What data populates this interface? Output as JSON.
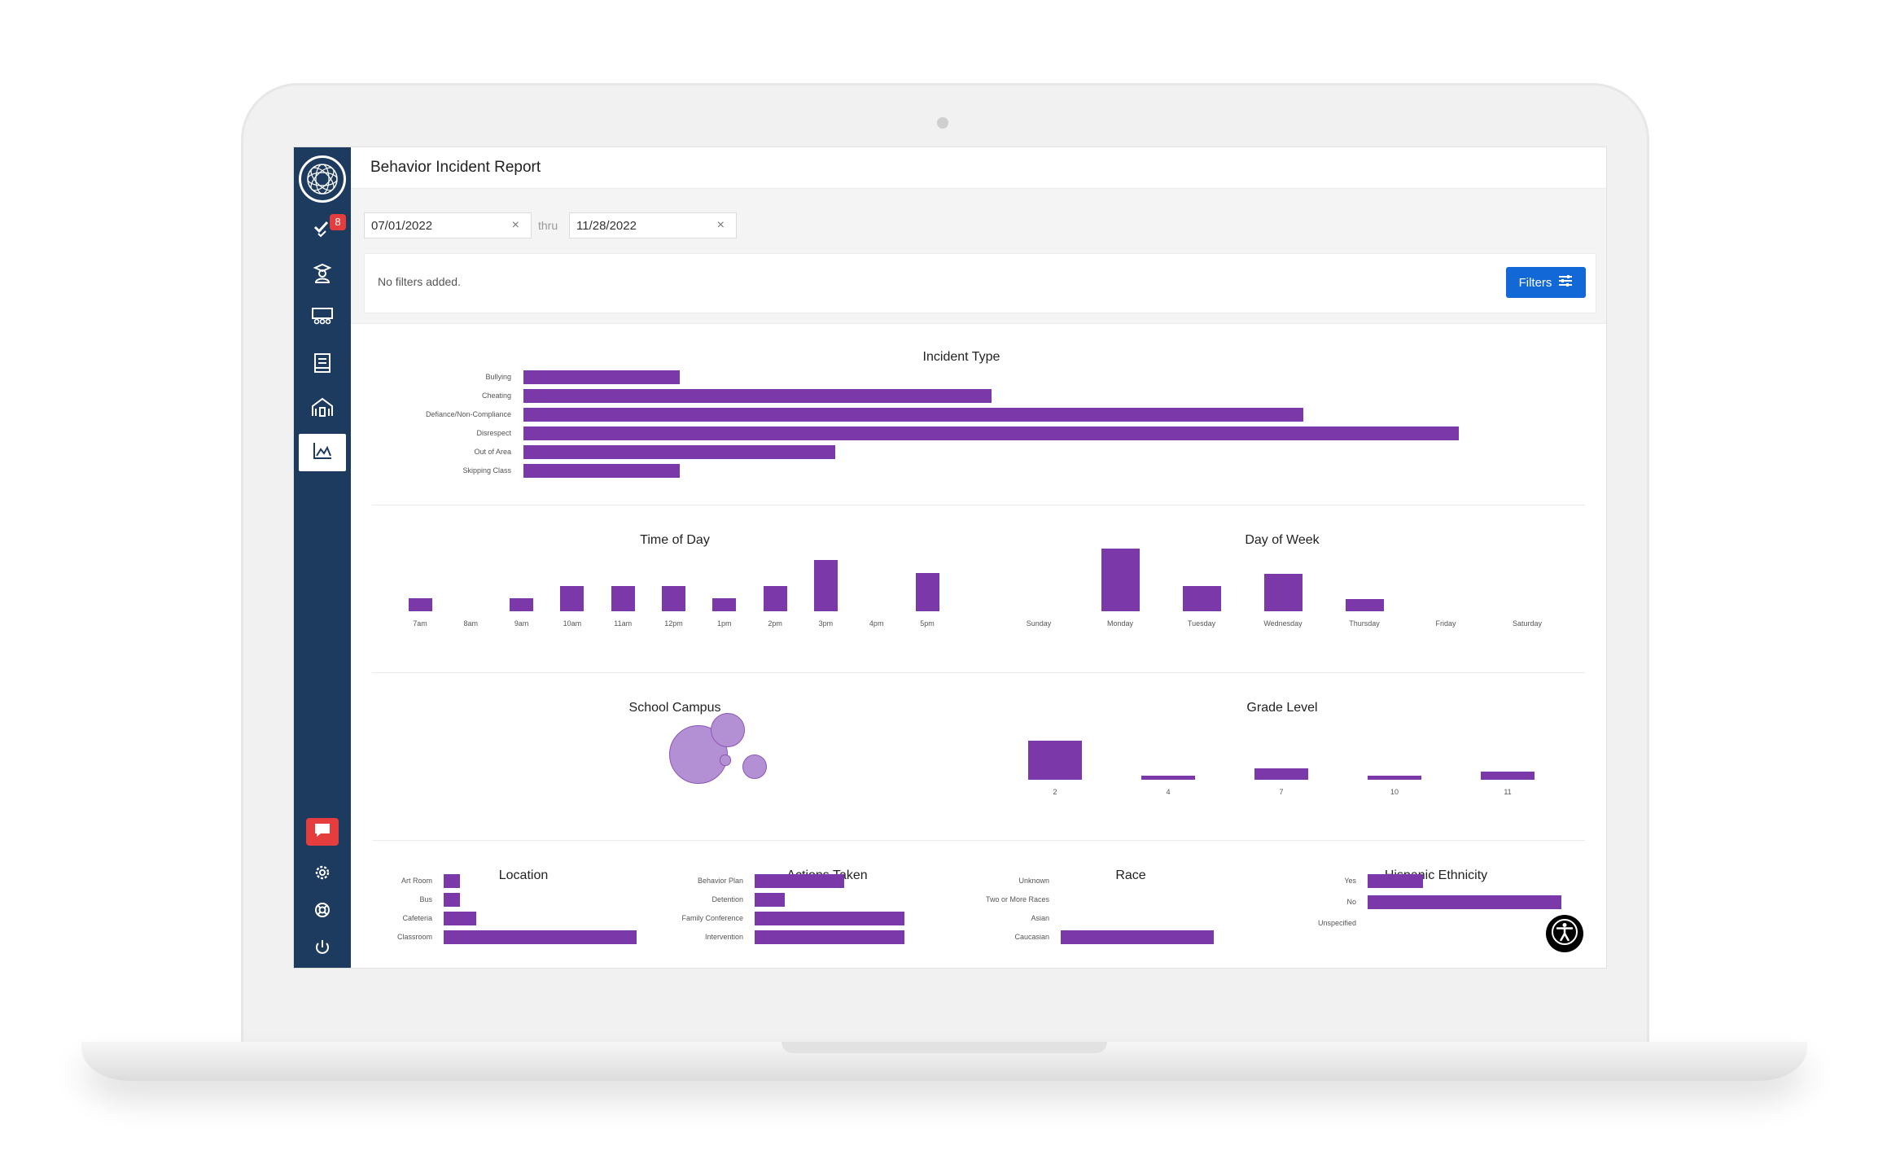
{
  "header": {
    "title": "Behavior Incident Report"
  },
  "date_range": {
    "start": "07/01/2022",
    "separator": "thru",
    "end": "11/28/2022",
    "clear_glyph": "×"
  },
  "filters": {
    "status": "No filters added.",
    "button_label": "Filters"
  },
  "sidebar": {
    "notification_count": "8",
    "items": [
      {
        "name": "tasks-icon"
      },
      {
        "name": "student-icon"
      },
      {
        "name": "classroom-icon"
      },
      {
        "name": "book-icon"
      },
      {
        "name": "school-icon"
      },
      {
        "name": "reports-icon",
        "active": true
      }
    ],
    "bottom_items": [
      "chat-icon",
      "gear-icon",
      "help-icon",
      "power-icon"
    ]
  },
  "colors": {
    "sidebar": "#1d3a5f",
    "bar": "#7a38a8",
    "bubble": "#b390d3",
    "button": "#1268d6",
    "badge": "#e53d3d"
  },
  "chart_data": [
    {
      "id": "incident-type",
      "type": "bar",
      "orientation": "horizontal",
      "title": "Incident Type",
      "categories": [
        "Bullying",
        "Cheating",
        "Defiance/Non-Compliance",
        "Disrespect",
        "Out of Area",
        "Skipping Class"
      ],
      "values": [
        1,
        3,
        5,
        6,
        2,
        1
      ]
    },
    {
      "id": "time-of-day",
      "type": "bar",
      "title": "Time of Day",
      "categories": [
        "7am",
        "8am",
        "9am",
        "10am",
        "11am",
        "12pm",
        "1pm",
        "2pm",
        "3pm",
        "4pm",
        "5pm"
      ],
      "values": [
        1,
        0,
        1,
        2,
        2,
        2,
        1,
        2,
        4,
        0,
        3
      ]
    },
    {
      "id": "day-of-week",
      "type": "bar",
      "title": "Day of Week",
      "categories": [
        "Sunday",
        "Monday",
        "Tuesday",
        "Wednesday",
        "Thursday",
        "Friday",
        "Saturday"
      ],
      "values": [
        0,
        5,
        2,
        3,
        1,
        0,
        0
      ]
    },
    {
      "id": "school-campus",
      "type": "bubble",
      "title": "School Campus",
      "values": [
        50,
        17,
        9,
        1.6
      ]
    },
    {
      "id": "grade-level",
      "type": "bar",
      "title": "Grade Level",
      "categories": [
        "2",
        "4",
        "7",
        "10",
        "11"
      ],
      "values": [
        10,
        1,
        3,
        1,
        2
      ]
    },
    {
      "id": "location",
      "type": "bar",
      "orientation": "horizontal",
      "title": "Location",
      "categories": [
        "Art Room",
        "Bus",
        "Cafeteria",
        "Classroom"
      ],
      "values": [
        1,
        1,
        2,
        12
      ]
    },
    {
      "id": "actions-taken",
      "type": "bar",
      "orientation": "horizontal",
      "title": "Actions Taken",
      "categories": [
        "Behavior Plan",
        "Detention",
        "Family Conference",
        "Intervention"
      ],
      "values": [
        3,
        1,
        5,
        5
      ]
    },
    {
      "id": "race",
      "type": "bar",
      "orientation": "horizontal",
      "title": "Race",
      "categories": [
        "Unknown",
        "Two or More Races",
        "Asian",
        "Caucasian"
      ],
      "values": [
        0,
        0,
        0,
        5
      ]
    },
    {
      "id": "hispanic-ethnicity",
      "type": "bar",
      "orientation": "horizontal",
      "title": "Hispanic Ethnicity",
      "categories": [
        "Yes",
        "No",
        "Unspecified"
      ],
      "values": [
        2,
        7,
        0
      ]
    }
  ]
}
